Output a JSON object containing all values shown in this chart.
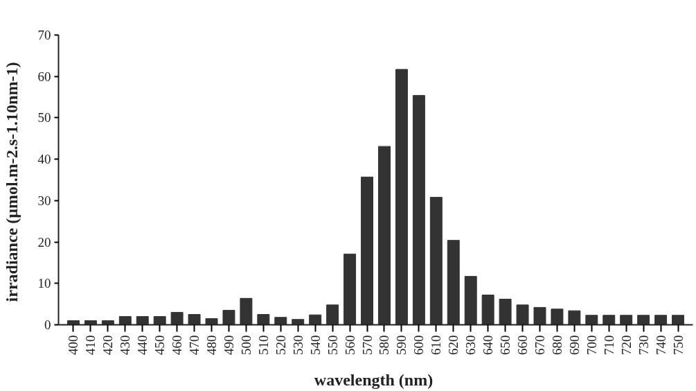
{
  "chart_data": {
    "type": "bar",
    "xlabel": "wavelength  (nm)",
    "ylabel": "irradiance  (µmol.m-2.s-1.10nm-1)",
    "categories": [
      "400",
      "410",
      "420",
      "430",
      "440",
      "450",
      "460",
      "470",
      "480",
      "490",
      "500",
      "510",
      "520",
      "530",
      "540",
      "550",
      "560",
      "570",
      "580",
      "590",
      "600",
      "610",
      "620",
      "630",
      "640",
      "650",
      "660",
      "670",
      "680",
      "690",
      "700",
      "710",
      "720",
      "730",
      "740",
      "750"
    ],
    "values": [
      1.0,
      1.0,
      1.0,
      2.0,
      2.0,
      2.0,
      3.0,
      2.5,
      1.5,
      3.5,
      6.4,
      2.5,
      1.8,
      1.3,
      2.4,
      4.8,
      17.1,
      35.7,
      43.1,
      61.7,
      55.4,
      30.8,
      20.4,
      11.7,
      7.2,
      6.2,
      4.8,
      4.2,
      3.8,
      3.4,
      2.3,
      2.3,
      2.3,
      2.3,
      2.3,
      2.3
    ],
    "color": "#333333",
    "ylim": [
      0,
      70
    ],
    "yticks": [
      0,
      10,
      20,
      30,
      40,
      50,
      60,
      70
    ],
    "grid": false
  }
}
